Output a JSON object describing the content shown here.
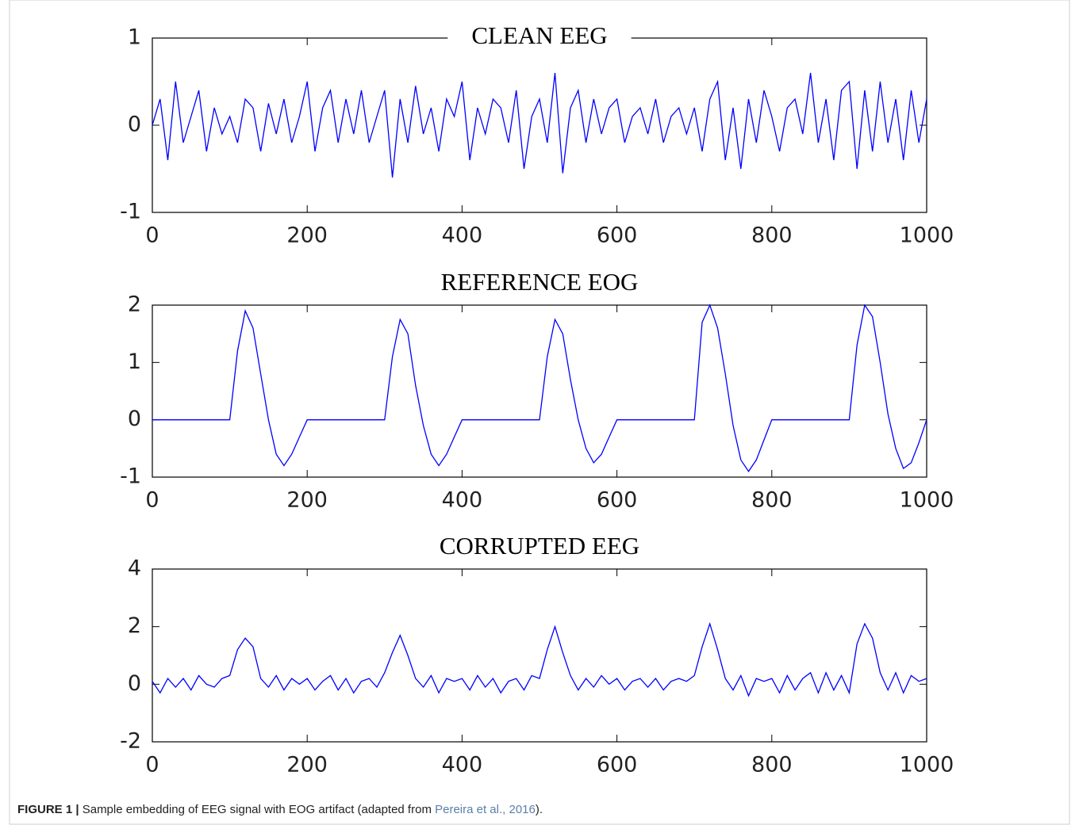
{
  "chart_data": [
    {
      "type": "line",
      "title": "CLEAN EEG",
      "color": "#0000ff",
      "xlim": [
        0,
        1000
      ],
      "xticks": [
        0,
        200,
        400,
        600,
        800,
        1000
      ],
      "ylim": [
        -1,
        1
      ],
      "yticks": [
        -1,
        0,
        1
      ],
      "x": [
        0,
        10,
        20,
        30,
        40,
        50,
        60,
        70,
        80,
        90,
        100,
        110,
        120,
        130,
        140,
        150,
        160,
        170,
        180,
        190,
        200,
        210,
        220,
        230,
        240,
        250,
        260,
        270,
        280,
        290,
        300,
        310,
        320,
        330,
        340,
        350,
        360,
        370,
        380,
        390,
        400,
        410,
        420,
        430,
        440,
        450,
        460,
        470,
        480,
        490,
        500,
        510,
        520,
        530,
        540,
        550,
        560,
        570,
        580,
        590,
        600,
        610,
        620,
        630,
        640,
        650,
        660,
        670,
        680,
        690,
        700,
        710,
        720,
        730,
        740,
        750,
        760,
        770,
        780,
        790,
        800,
        810,
        820,
        830,
        840,
        850,
        860,
        870,
        880,
        890,
        900,
        910,
        920,
        930,
        940,
        950,
        960,
        970,
        980,
        990,
        1000
      ],
      "values": [
        0,
        0.3,
        -0.4,
        0.5,
        -0.2,
        0.1,
        0.4,
        -0.3,
        0.2,
        -0.1,
        0.1,
        -0.2,
        0.3,
        0.2,
        -0.3,
        0.25,
        -0.1,
        0.3,
        -0.2,
        0.1,
        0.5,
        -0.3,
        0.2,
        0.4,
        -0.2,
        0.3,
        -0.1,
        0.4,
        -0.2,
        0.1,
        0.4,
        -0.6,
        0.3,
        -0.2,
        0.45,
        -0.1,
        0.2,
        -0.3,
        0.3,
        0.1,
        0.5,
        -0.4,
        0.2,
        -0.1,
        0.3,
        0.2,
        -0.2,
        0.4,
        -0.5,
        0.1,
        0.3,
        -0.2,
        0.6,
        -0.55,
        0.2,
        0.4,
        -0.2,
        0.3,
        -0.1,
        0.2,
        0.3,
        -0.2,
        0.1,
        0.2,
        -0.1,
        0.3,
        -0.2,
        0.1,
        0.2,
        -0.1,
        0.2,
        -0.3,
        0.3,
        0.5,
        -0.4,
        0.2,
        -0.5,
        0.3,
        -0.2,
        0.4,
        0.1,
        -0.3,
        0.2,
        0.3,
        -0.1,
        0.6,
        -0.2,
        0.3,
        -0.4,
        0.4,
        0.5,
        -0.5,
        0.4,
        -0.3,
        0.5,
        -0.2,
        0.3,
        -0.4,
        0.4,
        -0.2,
        0.3
      ]
    },
    {
      "type": "line",
      "title": "REFERENCE EOG",
      "color": "#0000ff",
      "xlim": [
        0,
        1000
      ],
      "xticks": [
        0,
        200,
        400,
        600,
        800,
        1000
      ],
      "ylim": [
        -1,
        2
      ],
      "yticks": [
        -1,
        0,
        1,
        2
      ],
      "x": [
        0,
        10,
        20,
        30,
        40,
        50,
        60,
        70,
        80,
        90,
        100,
        110,
        120,
        130,
        140,
        150,
        160,
        170,
        180,
        190,
        200,
        210,
        220,
        230,
        240,
        250,
        260,
        270,
        280,
        290,
        300,
        310,
        320,
        330,
        340,
        350,
        360,
        370,
        380,
        390,
        400,
        410,
        420,
        430,
        440,
        450,
        460,
        470,
        480,
        490,
        500,
        510,
        520,
        530,
        540,
        550,
        560,
        570,
        580,
        590,
        600,
        610,
        620,
        630,
        640,
        650,
        660,
        670,
        680,
        690,
        700,
        710,
        720,
        730,
        740,
        750,
        760,
        770,
        780,
        790,
        800,
        810,
        820,
        830,
        840,
        850,
        860,
        870,
        880,
        890,
        900,
        910,
        920,
        930,
        940,
        950,
        960,
        970,
        980,
        990,
        1000
      ],
      "values": [
        0,
        0,
        0,
        0,
        0,
        0,
        0,
        0,
        0,
        0,
        0,
        1.2,
        1.9,
        1.6,
        0.8,
        0,
        -0.6,
        -0.8,
        -0.6,
        -0.3,
        0,
        0,
        0,
        0,
        0,
        0,
        0,
        0,
        0,
        0,
        0,
        1.1,
        1.75,
        1.5,
        0.6,
        -0.1,
        -0.6,
        -0.8,
        -0.6,
        -0.3,
        0,
        0,
        0,
        0,
        0,
        0,
        0,
        0,
        0,
        0,
        0,
        1.1,
        1.75,
        1.5,
        0.7,
        0,
        -0.5,
        -0.75,
        -0.6,
        -0.3,
        0,
        0,
        0,
        0,
        0,
        0,
        0,
        0,
        0,
        0,
        0,
        1.7,
        2,
        1.6,
        0.8,
        -0.1,
        -0.7,
        -0.9,
        -0.7,
        -0.35,
        0,
        0,
        0,
        0,
        0,
        0,
        0,
        0,
        0,
        0,
        0,
        1.3,
        2,
        1.8,
        1,
        0.1,
        -0.5,
        -0.85,
        -0.75,
        -0.4,
        0
      ]
    },
    {
      "type": "line",
      "title": "CORRUPTED EEG",
      "color": "#0000ff",
      "xlim": [
        0,
        1000
      ],
      "xticks": [
        0,
        200,
        400,
        600,
        800,
        1000
      ],
      "ylim": [
        -2,
        4
      ],
      "yticks": [
        -2,
        0,
        2,
        4
      ],
      "x": [
        0,
        10,
        20,
        30,
        40,
        50,
        60,
        70,
        80,
        90,
        100,
        110,
        120,
        130,
        140,
        150,
        160,
        170,
        180,
        190,
        200,
        210,
        220,
        230,
        240,
        250,
        260,
        270,
        280,
        290,
        300,
        310,
        320,
        330,
        340,
        350,
        360,
        370,
        380,
        390,
        400,
        410,
        420,
        430,
        440,
        450,
        460,
        470,
        480,
        490,
        500,
        510,
        520,
        530,
        540,
        550,
        560,
        570,
        580,
        590,
        600,
        610,
        620,
        630,
        640,
        650,
        660,
        670,
        680,
        690,
        700,
        710,
        720,
        730,
        740,
        750,
        760,
        770,
        780,
        790,
        800,
        810,
        820,
        830,
        840,
        850,
        860,
        870,
        880,
        890,
        900,
        910,
        920,
        930,
        940,
        950,
        960,
        970,
        980,
        990,
        1000
      ],
      "values": [
        0.1,
        -0.3,
        0.2,
        -0.1,
        0.2,
        -0.2,
        0.3,
        0,
        -0.1,
        0.2,
        0.3,
        1.2,
        1.6,
        1.3,
        0.2,
        -0.1,
        0.3,
        -0.2,
        0.2,
        0,
        0.2,
        -0.2,
        0.1,
        0.3,
        -0.2,
        0.2,
        -0.3,
        0.1,
        0.2,
        -0.1,
        0.4,
        1.1,
        1.7,
        1.0,
        0.2,
        -0.1,
        0.3,
        -0.3,
        0.2,
        0.1,
        0.2,
        -0.2,
        0.3,
        -0.1,
        0.2,
        -0.3,
        0.1,
        0.2,
        -0.2,
        0.3,
        0.2,
        1.2,
        2.0,
        1.1,
        0.3,
        -0.2,
        0.2,
        -0.1,
        0.3,
        0,
        0.2,
        -0.2,
        0.1,
        0.2,
        -0.1,
        0.2,
        -0.2,
        0.1,
        0.2,
        0.1,
        0.3,
        1.3,
        2.1,
        1.2,
        0.2,
        -0.2,
        0.3,
        -0.4,
        0.2,
        0.1,
        0.2,
        -0.3,
        0.3,
        -0.2,
        0.2,
        0.4,
        -0.3,
        0.4,
        -0.2,
        0.3,
        -0.3,
        1.4,
        2.1,
        1.6,
        0.4,
        -0.2,
        0.4,
        -0.3,
        0.3,
        0.1,
        0.2
      ]
    }
  ],
  "caption": {
    "label": "FIGURE 1 |",
    "text": "Sample embedding of EEG signal with EOG artifact (adapted from",
    "link": "Pereira et al., 2016",
    "end": ")."
  }
}
